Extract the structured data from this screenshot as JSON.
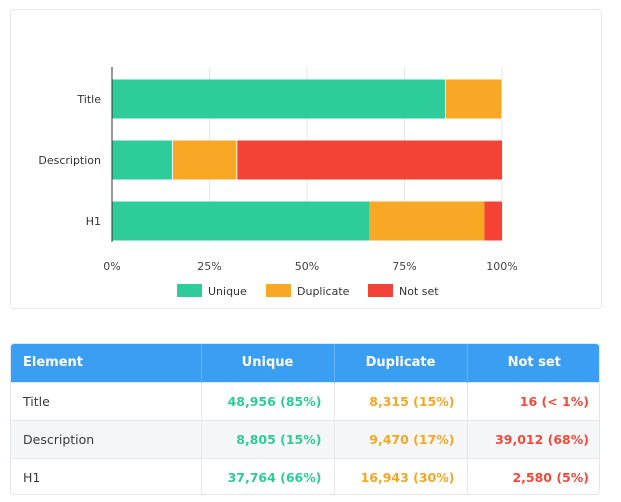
{
  "chart_data": {
    "type": "bar",
    "orientation": "horizontal",
    "stacked": "percent",
    "categories": [
      "Title",
      "Description",
      "H1"
    ],
    "series": [
      {
        "name": "Unique",
        "color": "#2ecc9a",
        "values": [
          85.5,
          15.5,
          66
        ]
      },
      {
        "name": "Duplicate",
        "color": "#f9a825",
        "values": [
          14.5,
          16.5,
          29.5
        ]
      },
      {
        "name": "Not set",
        "color": "#f44336",
        "values": [
          0.05,
          68,
          4.5
        ]
      }
    ],
    "xticks": [
      "0%",
      "25%",
      "50%",
      "75%",
      "100%"
    ],
    "xlim": [
      0,
      100
    ],
    "grid": true,
    "legend_position": "bottom"
  },
  "table": {
    "headers": [
      "Element",
      "Unique",
      "Duplicate",
      "Not set"
    ],
    "rows": [
      {
        "element": "Title",
        "unique": "48,956 (85%)",
        "duplicate": "8,315 (15%)",
        "notset": "16 (< 1%)"
      },
      {
        "element": "Description",
        "unique": "8,805 (15%)",
        "duplicate": "9,470 (17%)",
        "notset": "39,012 (68%)"
      },
      {
        "element": "H1",
        "unique": "37,764 (66%)",
        "duplicate": "16,943 (30%)",
        "notset": "2,580 (5%)"
      }
    ]
  }
}
